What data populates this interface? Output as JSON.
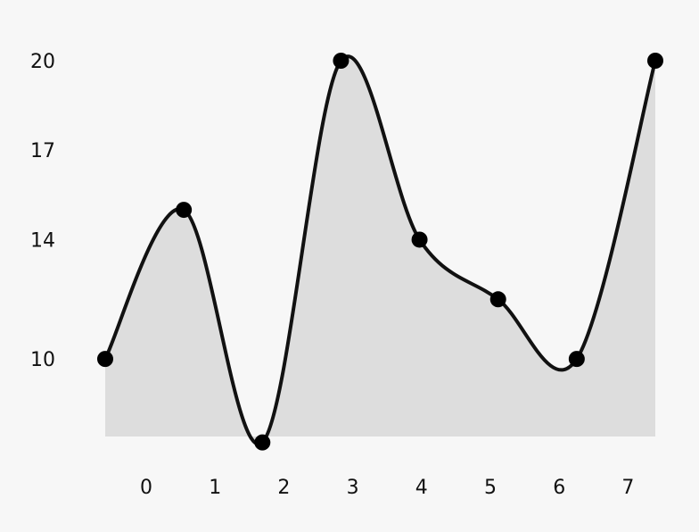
{
  "chart_data": {
    "type": "area",
    "x": [
      0,
      1,
      2,
      3,
      4,
      5,
      6,
      7
    ],
    "x_tick_labels": [
      "0",
      "1",
      "2",
      "3",
      "4",
      "5",
      "6",
      "7"
    ],
    "y_tick_labels": [
      "20",
      "17",
      "14",
      "10"
    ],
    "y_ticks": [
      20,
      17,
      14,
      10
    ],
    "series": [
      {
        "values": [
          10.0,
          15.0,
          7.2,
          20.0,
          14.0,
          12.0,
          10.0,
          20.0
        ]
      }
    ],
    "ylim": [
      7.4,
      20.0
    ],
    "grid": false,
    "legend": "none",
    "colors": {
      "background": "#f7f7f7",
      "fill": "#dddddd",
      "line": "#111111",
      "marker": "#000000"
    }
  }
}
